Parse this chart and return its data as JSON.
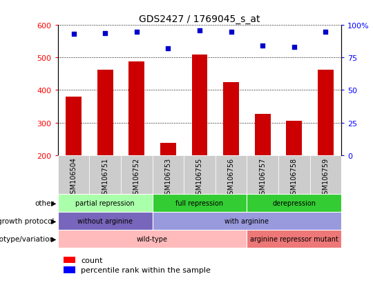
{
  "title": "GDS2427 / 1769045_s_at",
  "samples": [
    "GSM106504",
    "GSM106751",
    "GSM106752",
    "GSM106753",
    "GSM106755",
    "GSM106756",
    "GSM106757",
    "GSM106758",
    "GSM106759"
  ],
  "counts": [
    380,
    462,
    487,
    237,
    510,
    425,
    326,
    305,
    462
  ],
  "percentile_ranks": [
    93,
    94,
    95,
    82,
    96,
    95,
    84,
    83,
    95
  ],
  "ylim_left": [
    200,
    600
  ],
  "ylim_right": [
    0,
    100
  ],
  "yticks_left": [
    200,
    300,
    400,
    500,
    600
  ],
  "yticks_right": [
    0,
    25,
    50,
    75,
    100
  ],
  "bar_color": "#cc0000",
  "dot_color": "#0000cc",
  "col_bg_color": "#cccccc",
  "annotation_rows": [
    {
      "label": "other",
      "segments": [
        {
          "text": "partial repression",
          "start": 0,
          "end": 3,
          "color": "#aaffaa"
        },
        {
          "text": "full repression",
          "start": 3,
          "end": 6,
          "color": "#44dd44"
        },
        {
          "text": "derepression",
          "start": 6,
          "end": 9,
          "color": "#44dd44"
        }
      ]
    },
    {
      "label": "growth protocol",
      "segments": [
        {
          "text": "without arginine",
          "start": 0,
          "end": 3,
          "color": "#8877cc"
        },
        {
          "text": "with arginine",
          "start": 3,
          "end": 9,
          "color": "#aaaaee"
        }
      ]
    },
    {
      "label": "genotype/variation",
      "segments": [
        {
          "text": "wild-type",
          "start": 0,
          "end": 6,
          "color": "#ffbbbb"
        },
        {
          "text": "arginine repressor mutant",
          "start": 6,
          "end": 9,
          "color": "#ee8888"
        }
      ]
    }
  ]
}
